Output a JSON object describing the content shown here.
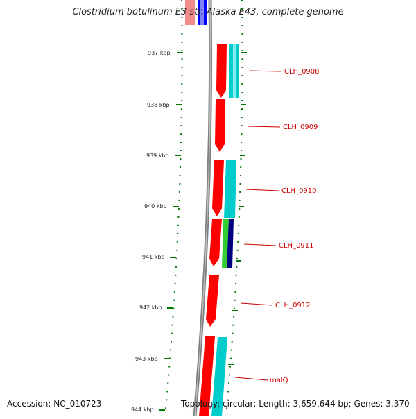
{
  "title": "Clostridium botulinum E3 str. Alaska E43, complete genome",
  "footer": {
    "accession": "Accession: NC_010723",
    "info": "Topology: circular; Length: 3,659,644 bp; Genes: 3,370"
  },
  "colors": {
    "forward_cds": "#ff0000",
    "reverse_cds": "#00cccc",
    "green_feature": "#33cc33",
    "navy_feature": "#000080",
    "blue_feature": "#0000ff",
    "backbone": "#808080",
    "tick": "#007700",
    "label": "#cc0000"
  },
  "ticks": [
    {
      "label": "937 kbp"
    },
    {
      "label": "938 kbp"
    },
    {
      "label": "939 kbp"
    },
    {
      "label": "940 kbp"
    },
    {
      "label": "941 kbp"
    },
    {
      "label": "942 kbp"
    },
    {
      "label": "943 kbp"
    },
    {
      "label": "944 kbp"
    }
  ],
  "genes": [
    {
      "label": "CLH_0908"
    },
    {
      "label": "CLH_0909"
    },
    {
      "label": "CLH_0910"
    },
    {
      "label": "CLH_0911"
    },
    {
      "label": "CLH_0912"
    },
    {
      "label": "malQ"
    }
  ]
}
